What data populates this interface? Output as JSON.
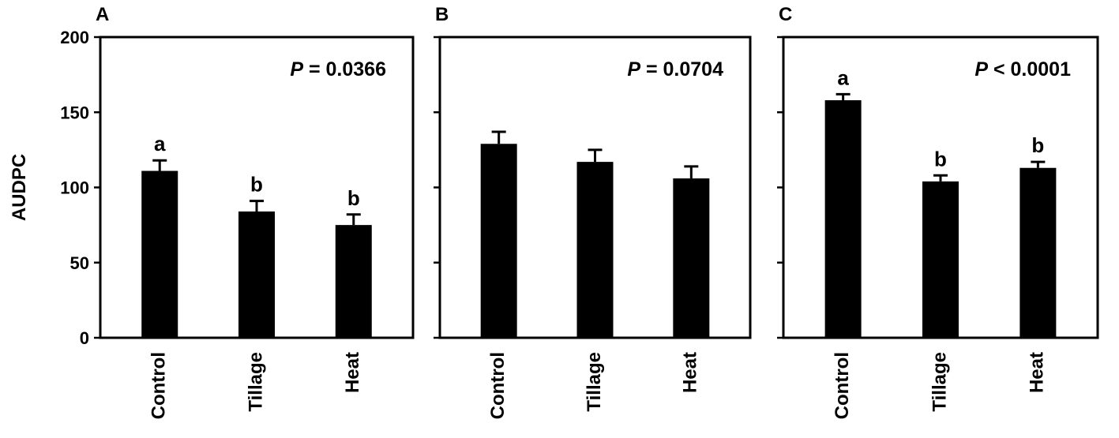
{
  "chart_data": {
    "type": "bar",
    "ylabel": "AUDPC",
    "ylim": [
      0,
      200
    ],
    "yticks": [
      0,
      50,
      100,
      150,
      200
    ],
    "categories": [
      "Control",
      "Tillage",
      "Heat"
    ],
    "panels": [
      {
        "letter": "A",
        "p_symbol": "P",
        "p_rest": "= 0.0366",
        "values": [
          111,
          84,
          75
        ],
        "errors": [
          7,
          7,
          7
        ],
        "significance": [
          "a",
          "b",
          "b"
        ]
      },
      {
        "letter": "B",
        "p_symbol": "P",
        "p_rest": "= 0.0704",
        "values": [
          129,
          117,
          106
        ],
        "errors": [
          8,
          8,
          8
        ],
        "significance": [
          "",
          "",
          ""
        ]
      },
      {
        "letter": "C",
        "p_symbol": "P",
        "p_rest": "< 0.0001",
        "values": [
          158,
          104,
          113
        ],
        "errors": [
          4,
          4,
          4
        ],
        "significance": [
          "a",
          "b",
          "b"
        ]
      }
    ]
  }
}
